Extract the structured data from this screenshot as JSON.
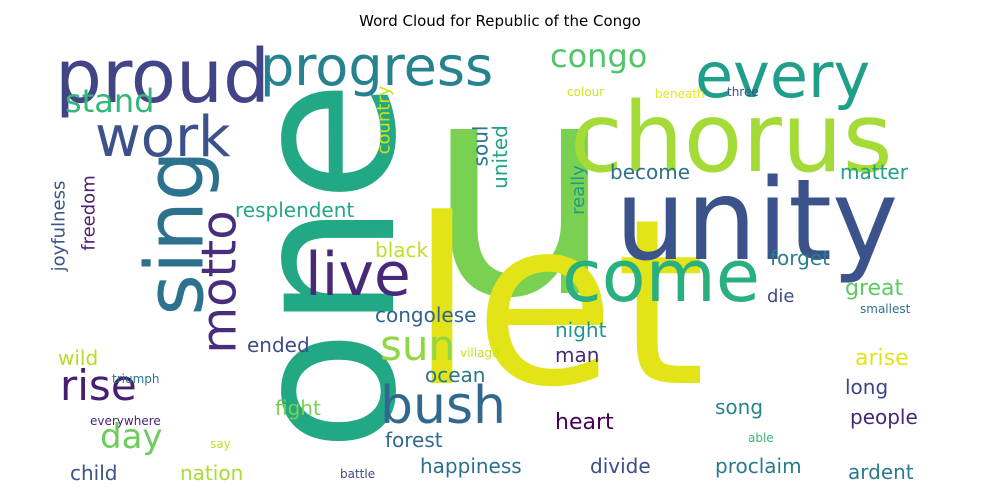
{
  "title": "Word Cloud for Republic of the Congo",
  "words": [
    {
      "text": "u",
      "color": "#7ad151"
    },
    {
      "text": "let",
      "color": "#e2e418"
    },
    {
      "text": "one",
      "color": "#22a884"
    },
    {
      "text": "unity",
      "color": "#3b528b"
    },
    {
      "text": "chorus",
      "color": "#a5db36"
    },
    {
      "text": "come",
      "color": "#2ab07f"
    },
    {
      "text": "every",
      "color": "#1f9e89"
    },
    {
      "text": "proud",
      "color": "#414487"
    },
    {
      "text": "progress",
      "color": "#26828e"
    },
    {
      "text": "sing",
      "color": "#2c728e"
    },
    {
      "text": "work",
      "color": "#3b528b"
    },
    {
      "text": "live",
      "color": "#482878"
    },
    {
      "text": "bush",
      "color": "#31688e"
    },
    {
      "text": "motto",
      "color": "#472d7b"
    },
    {
      "text": "congo",
      "color": "#52c569"
    },
    {
      "text": "stand",
      "color": "#35b779"
    },
    {
      "text": "rise",
      "color": "#481f70"
    },
    {
      "text": "day",
      "color": "#6ccd5a"
    },
    {
      "text": "sun",
      "color": "#90d743"
    },
    {
      "text": "resplendent",
      "color": "#22a884"
    },
    {
      "text": "country",
      "color": "#d0e11c"
    },
    {
      "text": "soul",
      "color": "#2a788e"
    },
    {
      "text": "united",
      "color": "#20a386"
    },
    {
      "text": "become",
      "color": "#2c728e"
    },
    {
      "text": "matter",
      "color": "#1fa088"
    },
    {
      "text": "really",
      "color": "#1e9c89"
    },
    {
      "text": "black",
      "color": "#bddf26"
    },
    {
      "text": "forget",
      "color": "#277f8e"
    },
    {
      "text": "great",
      "color": "#5ec962"
    },
    {
      "text": "die",
      "color": "#3e4a89"
    },
    {
      "text": "congolese",
      "color": "#33638d"
    },
    {
      "text": "night",
      "color": "#1f968b"
    },
    {
      "text": "man",
      "color": "#472c7a"
    },
    {
      "text": "ended",
      "color": "#3e4c8a"
    },
    {
      "text": "ocean",
      "color": "#2a768e"
    },
    {
      "text": "arise",
      "color": "#e2e418"
    },
    {
      "text": "long",
      "color": "#414487"
    },
    {
      "text": "song",
      "color": "#25858e"
    },
    {
      "text": "people",
      "color": "#482677"
    },
    {
      "text": "fight",
      "color": "#7ad151"
    },
    {
      "text": "heart",
      "color": "#440154"
    },
    {
      "text": "forest",
      "color": "#306a8e"
    },
    {
      "text": "happiness",
      "color": "#2d708e"
    },
    {
      "text": "divide",
      "color": "#3d4d8a"
    },
    {
      "text": "proclaim",
      "color": "#297a8e"
    },
    {
      "text": "ardent",
      "color": "#297b8e"
    },
    {
      "text": "child",
      "color": "#3b528b"
    },
    {
      "text": "nation",
      "color": "#a8db34"
    },
    {
      "text": "wild",
      "color": "#b5de2b"
    },
    {
      "text": "joyfulness",
      "color": "#3b528b"
    },
    {
      "text": "freedom",
      "color": "#482173"
    },
    {
      "text": "triumph",
      "color": "#2a768e"
    },
    {
      "text": "everywhere",
      "color": "#482677"
    },
    {
      "text": "say",
      "color": "#c2df23"
    },
    {
      "text": "battle",
      "color": "#3e4a89"
    },
    {
      "text": "able",
      "color": "#35b779"
    },
    {
      "text": "colour",
      "color": "#d5e21a"
    },
    {
      "text": "beneath",
      "color": "#e7e419"
    },
    {
      "text": "three",
      "color": "#3b528b"
    },
    {
      "text": "village",
      "color": "#c2df23"
    },
    {
      "text": "smallest",
      "color": "#2c728e"
    }
  ]
}
